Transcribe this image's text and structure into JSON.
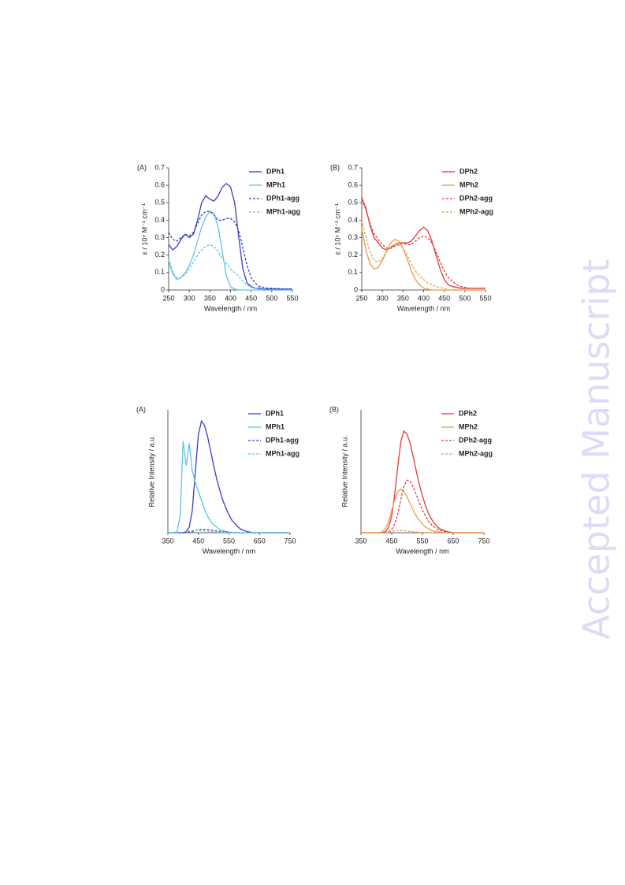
{
  "watermark": "Accepted Manuscript",
  "chart_data": [
    {
      "type": "line",
      "label": "(A)",
      "x_label": "Wavelength / nm",
      "y_label": "ε / 10⁵ M⁻¹ cm⁻¹",
      "x": [
        250,
        260,
        270,
        280,
        290,
        300,
        310,
        320,
        330,
        340,
        350,
        360,
        370,
        380,
        390,
        400,
        410,
        420,
        430,
        440,
        450,
        460,
        470,
        480,
        490,
        500,
        510,
        520,
        530,
        540,
        550
      ],
      "xlim": [
        250,
        550
      ],
      "xticks": [
        250,
        300,
        350,
        400,
        450,
        500,
        550
      ],
      "ylim": [
        0,
        0.7
      ],
      "yticks": [
        0,
        0.1,
        0.2,
        0.3,
        0.4,
        0.5,
        0.6,
        0.7
      ],
      "series": [
        {
          "name": "DPh1",
          "color": "#3a3ccc",
          "dash": false,
          "values": [
            0.26,
            0.23,
            0.25,
            0.29,
            0.32,
            0.3,
            0.32,
            0.4,
            0.5,
            0.54,
            0.52,
            0.51,
            0.54,
            0.59,
            0.61,
            0.59,
            0.5,
            0.3,
            0.12,
            0.04,
            0.02,
            0.01,
            0.01,
            0.005,
            0.005,
            0.005,
            0.005,
            0.005,
            0.005,
            0.005,
            0.005
          ]
        },
        {
          "name": "MPh1",
          "color": "#5ec3e6",
          "dash": false,
          "values": [
            0.17,
            0.09,
            0.06,
            0.07,
            0.1,
            0.14,
            0.2,
            0.28,
            0.36,
            0.42,
            0.45,
            0.44,
            0.36,
            0.22,
            0.08,
            0.02,
            0.005,
            0,
            0,
            0,
            0,
            0,
            0,
            0,
            0,
            0,
            0,
            0,
            0,
            0,
            0
          ]
        },
        {
          "name": "DPh1-agg",
          "color": "#3a3ccc",
          "dash": true,
          "values": [
            0.33,
            0.29,
            0.28,
            0.3,
            0.32,
            0.31,
            0.33,
            0.38,
            0.43,
            0.45,
            0.45,
            0.43,
            0.4,
            0.4,
            0.41,
            0.41,
            0.39,
            0.34,
            0.24,
            0.14,
            0.07,
            0.04,
            0.02,
            0.015,
            0.01,
            0.01,
            0.008,
            0.008,
            0.006,
            0.006,
            0.005
          ]
        },
        {
          "name": "MPh1-agg",
          "color": "#5ec3e6",
          "dash": true,
          "values": [
            0.18,
            0.1,
            0.07,
            0.07,
            0.09,
            0.12,
            0.16,
            0.2,
            0.23,
            0.25,
            0.26,
            0.25,
            0.22,
            0.18,
            0.15,
            0.12,
            0.1,
            0.08,
            0.05,
            0.03,
            0.015,
            0.01,
            0.005,
            0,
            0,
            0,
            0,
            0,
            0,
            0,
            0
          ]
        }
      ]
    },
    {
      "type": "line",
      "label": "(B)",
      "x_label": "Wavelength / nm",
      "y_label": "ε / 10⁵ M⁻¹ cm⁻¹",
      "x": [
        250,
        260,
        270,
        280,
        290,
        300,
        310,
        320,
        330,
        340,
        350,
        360,
        370,
        380,
        390,
        400,
        410,
        420,
        430,
        440,
        450,
        460,
        470,
        480,
        490,
        500,
        510,
        520,
        530,
        540,
        550
      ],
      "xlim": [
        250,
        550
      ],
      "xticks": [
        250,
        300,
        350,
        400,
        450,
        500,
        550
      ],
      "ylim": [
        0,
        0.7
      ],
      "yticks": [
        0,
        0.1,
        0.2,
        0.3,
        0.4,
        0.5,
        0.6,
        0.7
      ],
      "series": [
        {
          "name": "DPh2",
          "color": "#e03a3a",
          "dash": false,
          "values": [
            0.53,
            0.47,
            0.37,
            0.3,
            0.27,
            0.24,
            0.23,
            0.24,
            0.26,
            0.27,
            0.27,
            0.27,
            0.28,
            0.31,
            0.34,
            0.36,
            0.34,
            0.28,
            0.2,
            0.12,
            0.06,
            0.03,
            0.02,
            0.015,
            0.01,
            0.01,
            0.01,
            0.01,
            0.01,
            0.01,
            0.01
          ]
        },
        {
          "name": "MPh2",
          "color": "#ec9a4c",
          "dash": false,
          "values": [
            0.35,
            0.23,
            0.15,
            0.12,
            0.13,
            0.17,
            0.22,
            0.27,
            0.29,
            0.28,
            0.24,
            0.18,
            0.11,
            0.06,
            0.03,
            0.01,
            0.005,
            0,
            0,
            0,
            0,
            0,
            0,
            0,
            0,
            0,
            0,
            0,
            0,
            0,
            0
          ]
        },
        {
          "name": "DPh2-agg",
          "color": "#e03a3a",
          "dash": true,
          "values": [
            0.52,
            0.46,
            0.38,
            0.32,
            0.29,
            0.26,
            0.24,
            0.24,
            0.25,
            0.26,
            0.27,
            0.26,
            0.26,
            0.28,
            0.3,
            0.31,
            0.3,
            0.27,
            0.22,
            0.16,
            0.11,
            0.07,
            0.05,
            0.03,
            0.02,
            0.015,
            0.01,
            0.01,
            0.01,
            0.01,
            0.01
          ]
        },
        {
          "name": "MPh2-agg",
          "color": "#ec9a4c",
          "dash": true,
          "values": [
            0.4,
            0.3,
            0.22,
            0.17,
            0.16,
            0.18,
            0.22,
            0.25,
            0.26,
            0.26,
            0.24,
            0.2,
            0.15,
            0.11,
            0.08,
            0.06,
            0.04,
            0.03,
            0.02,
            0.015,
            0.01,
            0,
            0,
            0,
            0,
            0,
            0,
            0,
            0,
            0,
            0
          ]
        }
      ]
    },
    {
      "type": "line",
      "label": "(A)",
      "x_label": "Wavelength / nm",
      "y_label": "Relative Intensity / a.u.",
      "x": [
        350,
        360,
        370,
        380,
        390,
        400,
        410,
        420,
        430,
        440,
        450,
        460,
        470,
        480,
        490,
        500,
        510,
        520,
        530,
        540,
        550,
        560,
        570,
        580,
        590,
        600,
        610,
        620,
        630,
        640,
        650,
        660,
        670,
        680,
        690,
        700,
        710,
        720,
        730,
        740,
        750
      ],
      "xlim": [
        350,
        750
      ],
      "xticks": [
        350,
        450,
        550,
        650,
        750
      ],
      "ylim": [
        0,
        1.1
      ],
      "series": [
        {
          "name": "DPh1",
          "color": "#3a3ccc",
          "dash": false,
          "values": [
            0,
            0,
            0,
            0,
            0,
            0,
            0.01,
            0.05,
            0.2,
            0.55,
            0.88,
            1.0,
            0.96,
            0.86,
            0.73,
            0.6,
            0.48,
            0.38,
            0.29,
            0.22,
            0.16,
            0.11,
            0.08,
            0.05,
            0.03,
            0.02,
            0.01,
            0.005,
            0,
            0,
            0,
            0,
            0,
            0,
            0,
            0,
            0,
            0,
            0,
            0,
            0
          ]
        },
        {
          "name": "MPh1",
          "color": "#5ec3e6",
          "dash": false,
          "values": [
            0,
            0,
            0,
            0.01,
            0.15,
            0.82,
            0.6,
            0.8,
            0.55,
            0.45,
            0.37,
            0.29,
            0.21,
            0.15,
            0.1,
            0.07,
            0.05,
            0.03,
            0.02,
            0.01,
            0.005,
            0,
            0,
            0,
            0,
            0,
            0,
            0,
            0,
            0,
            0,
            0,
            0,
            0,
            0,
            0,
            0,
            0,
            0,
            0,
            0
          ]
        },
        {
          "name": "DPh1-agg",
          "color": "#3a3ccc",
          "dash": true,
          "values": [
            0,
            0,
            0,
            0,
            0,
            0,
            0.002,
            0.005,
            0.01,
            0.018,
            0.025,
            0.03,
            0.03,
            0.028,
            0.024,
            0.02,
            0.016,
            0.012,
            0.009,
            0.007,
            0.005,
            0.003,
            0.002,
            0.001,
            0,
            0,
            0,
            0,
            0,
            0,
            0,
            0,
            0,
            0,
            0,
            0,
            0,
            0,
            0,
            0,
            0
          ]
        },
        {
          "name": "MPh1-agg",
          "color": "#5ec3e6",
          "dash": true,
          "values": [
            0,
            0,
            0,
            0,
            0.003,
            0.008,
            0.012,
            0.016,
            0.018,
            0.02,
            0.02,
            0.018,
            0.016,
            0.013,
            0.01,
            0.008,
            0.006,
            0.004,
            0.003,
            0.002,
            0.001,
            0,
            0,
            0,
            0,
            0,
            0,
            0,
            0,
            0,
            0,
            0,
            0,
            0,
            0,
            0,
            0,
            0,
            0,
            0,
            0
          ]
        }
      ]
    },
    {
      "type": "line",
      "label": "(B)",
      "x_label": "Wavelength / nm",
      "y_label": "Relative Intensity / a.u.",
      "x": [
        350,
        360,
        370,
        380,
        390,
        400,
        410,
        420,
        430,
        440,
        450,
        460,
        470,
        480,
        490,
        500,
        510,
        520,
        530,
        540,
        550,
        560,
        570,
        580,
        590,
        600,
        610,
        620,
        630,
        640,
        650,
        660,
        670,
        680,
        690,
        700,
        710,
        720,
        730,
        740,
        750
      ],
      "xlim": [
        350,
        750
      ],
      "xticks": [
        350,
        450,
        550,
        650,
        750
      ],
      "ylim": [
        0,
        1.1
      ],
      "series": [
        {
          "name": "DPh2",
          "color": "#e03a3a",
          "dash": false,
          "values": [
            0,
            0,
            0,
            0,
            0,
            0,
            0,
            0,
            0.01,
            0.05,
            0.15,
            0.35,
            0.6,
            0.82,
            0.91,
            0.88,
            0.8,
            0.68,
            0.55,
            0.43,
            0.33,
            0.24,
            0.17,
            0.12,
            0.08,
            0.05,
            0.03,
            0.02,
            0.01,
            0.005,
            0,
            0,
            0,
            0,
            0,
            0,
            0,
            0,
            0,
            0,
            0
          ]
        },
        {
          "name": "MPh2",
          "color": "#ec9a4c",
          "dash": false,
          "values": [
            0,
            0,
            0,
            0,
            0,
            0,
            0,
            0.01,
            0.04,
            0.1,
            0.2,
            0.3,
            0.37,
            0.39,
            0.37,
            0.32,
            0.26,
            0.2,
            0.15,
            0.11,
            0.08,
            0.05,
            0.035,
            0.02,
            0.012,
            0.007,
            0.004,
            0.002,
            0,
            0,
            0,
            0,
            0,
            0,
            0,
            0,
            0,
            0,
            0,
            0,
            0
          ]
        },
        {
          "name": "DPh2-agg",
          "color": "#e03a3a",
          "dash": true,
          "values": [
            0,
            0,
            0,
            0,
            0,
            0,
            0,
            0,
            0,
            0.01,
            0.03,
            0.08,
            0.17,
            0.3,
            0.42,
            0.47,
            0.46,
            0.41,
            0.34,
            0.27,
            0.2,
            0.15,
            0.1,
            0.07,
            0.05,
            0.03,
            0.02,
            0.01,
            0.005,
            0,
            0,
            0,
            0,
            0,
            0,
            0,
            0,
            0,
            0,
            0,
            0
          ]
        },
        {
          "name": "MPh2-agg",
          "color": "#ec9a4c",
          "dash": true,
          "values": [
            0,
            0,
            0,
            0,
            0,
            0,
            0,
            0,
            0.003,
            0.008,
            0.013,
            0.017,
            0.02,
            0.02,
            0.018,
            0.015,
            0.012,
            0.009,
            0.006,
            0.004,
            0.002,
            0.001,
            0,
            0,
            0,
            0,
            0,
            0,
            0,
            0,
            0,
            0,
            0,
            0,
            0,
            0,
            0,
            0,
            0,
            0,
            0
          ]
        }
      ]
    }
  ]
}
